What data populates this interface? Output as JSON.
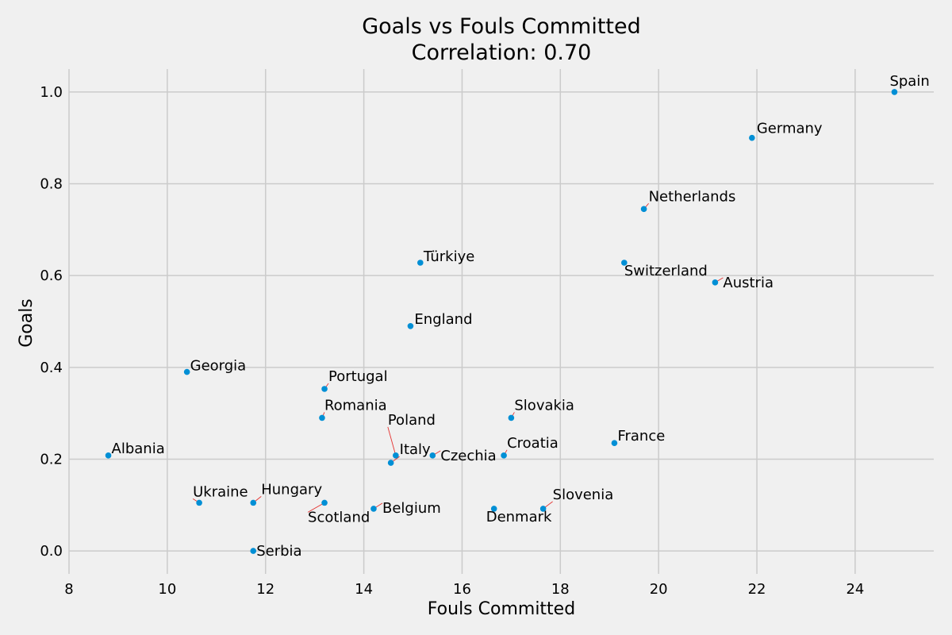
{
  "chart_data": {
    "type": "scatter",
    "title": "Goals vs Fouls Committed",
    "subtitle": "Correlation: 0.70",
    "xlabel": "Fouls Committed",
    "ylabel": "Goals",
    "xlim": [
      8,
      25.6
    ],
    "ylim": [
      -0.05,
      1.05
    ],
    "xticks": [
      8,
      10,
      12,
      14,
      16,
      18,
      20,
      22,
      24
    ],
    "yticks": [
      0.0,
      0.2,
      0.4,
      0.6,
      0.8,
      1.0
    ],
    "xtick_labels": [
      "8",
      "10",
      "12",
      "14",
      "16",
      "18",
      "20",
      "22",
      "24"
    ],
    "ytick_labels": [
      "0.0",
      "0.2",
      "0.4",
      "0.6",
      "0.8",
      "1.0"
    ],
    "grid": true,
    "point_color": "#008fd5",
    "leader_color": "#e5312f",
    "points": [
      {
        "label": "Spain",
        "x": 24.8,
        "y": 1.0
      },
      {
        "label": "Germany",
        "x": 21.9,
        "y": 0.9
      },
      {
        "label": "Netherlands",
        "x": 19.7,
        "y": 0.745
      },
      {
        "label": "Switzerland",
        "x": 19.3,
        "y": 0.628
      },
      {
        "label": "Austria",
        "x": 21.15,
        "y": 0.585
      },
      {
        "label": "Türkiye",
        "x": 15.15,
        "y": 0.628
      },
      {
        "label": "England",
        "x": 14.95,
        "y": 0.49
      },
      {
        "label": "Georgia",
        "x": 10.4,
        "y": 0.39
      },
      {
        "label": "Portugal",
        "x": 13.2,
        "y": 0.353
      },
      {
        "label": "Romania",
        "x": 13.15,
        "y": 0.29
      },
      {
        "label": "Slovakia",
        "x": 17.0,
        "y": 0.29
      },
      {
        "label": "France",
        "x": 19.1,
        "y": 0.235
      },
      {
        "label": "Albania",
        "x": 8.8,
        "y": 0.208
      },
      {
        "label": "Poland",
        "x": 14.65,
        "y": 0.208
      },
      {
        "label": "Italy",
        "x": 14.55,
        "y": 0.192
      },
      {
        "label": "Czechia",
        "x": 15.4,
        "y": 0.208
      },
      {
        "label": "Croatia",
        "x": 16.85,
        "y": 0.208
      },
      {
        "label": "Ukraine",
        "x": 10.65,
        "y": 0.105
      },
      {
        "label": "Hungary",
        "x": 11.75,
        "y": 0.105
      },
      {
        "label": "Scotland",
        "x": 13.2,
        "y": 0.105
      },
      {
        "label": "Belgium",
        "x": 14.2,
        "y": 0.092
      },
      {
        "label": "Denmark",
        "x": 16.65,
        "y": 0.092
      },
      {
        "label": "Slovenia",
        "x": 17.65,
        "y": 0.092
      },
      {
        "label": "Serbia",
        "x": 11.75,
        "y": 0.0
      }
    ]
  }
}
